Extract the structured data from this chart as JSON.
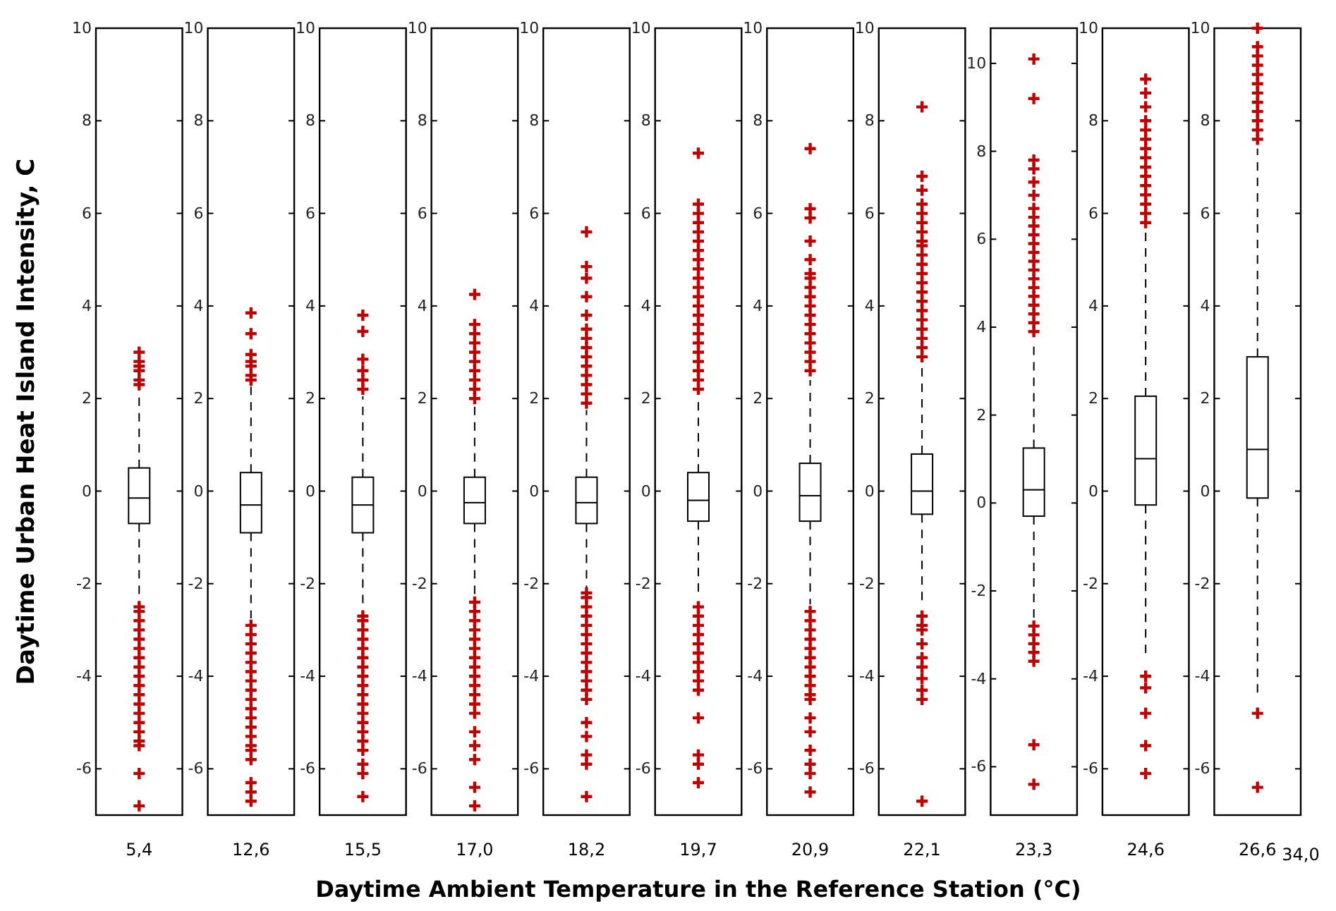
{
  "chart_data": [
    {
      "type": "box",
      "ylabel": "Daytime Urban Heat Island Intensity, C",
      "categories": [
        "5,4"
      ],
      "ylim": [
        -7,
        10
      ],
      "yticks": [
        -6,
        -4,
        -2,
        0,
        2,
        4,
        6,
        8,
        10
      ],
      "marker": "cross",
      "boxes": [
        {
          "low": -2.4,
          "q1": -0.7,
          "median": -0.15,
          "q3": 0.5,
          "high": 2.2,
          "outliers": [
            2.3,
            2.4,
            2.6,
            2.7,
            2.8,
            3.0,
            -2.5,
            -2.6,
            -2.8,
            -3.0,
            -3.2,
            -3.4,
            -3.6,
            -3.8,
            -4.0,
            -4.2,
            -4.4,
            -4.6,
            -4.8,
            -5.0,
            -5.2,
            -5.4,
            -5.5,
            -6.1,
            -6.8
          ]
        }
      ]
    },
    {
      "type": "box",
      "categories": [
        "12,6"
      ],
      "ylim": [
        -7,
        10
      ],
      "yticks": [
        -6,
        -4,
        -2,
        0,
        2,
        4,
        6,
        8,
        10
      ],
      "marker": "cross",
      "boxes": [
        {
          "low": -2.75,
          "q1": -0.9,
          "median": -0.3,
          "q3": 0.4,
          "high": 2.3,
          "outliers": [
            2.4,
            2.5,
            2.7,
            2.8,
            2.95,
            3.4,
            3.85,
            -2.9,
            -3.1,
            -3.3,
            -3.5,
            -3.7,
            -3.9,
            -4.1,
            -4.3,
            -4.5,
            -4.7,
            -4.9,
            -5.1,
            -5.3,
            -5.5,
            -5.6,
            -5.8,
            -6.3,
            -6.5,
            -6.7
          ]
        }
      ]
    },
    {
      "type": "box",
      "categories": [
        "15,5"
      ],
      "ylim": [
        -7,
        10
      ],
      "yticks": [
        -6,
        -4,
        -2,
        0,
        2,
        4,
        6,
        8,
        10
      ],
      "marker": "cross",
      "boxes": [
        {
          "low": -2.6,
          "q1": -0.9,
          "median": -0.3,
          "q3": 0.3,
          "high": 2.05,
          "outliers": [
            2.2,
            2.4,
            2.6,
            2.85,
            3.45,
            3.8,
            -2.7,
            -2.8,
            -3.0,
            -3.2,
            -3.4,
            -3.6,
            -3.8,
            -4.0,
            -4.2,
            -4.4,
            -4.6,
            -4.8,
            -5.0,
            -5.2,
            -5.4,
            -5.6,
            -5.9,
            -6.1,
            -6.6
          ]
        }
      ]
    },
    {
      "type": "box",
      "categories": [
        "17,0"
      ],
      "ylim": [
        -7,
        10
      ],
      "yticks": [
        -6,
        -4,
        -2,
        0,
        2,
        4,
        6,
        8,
        10
      ],
      "marker": "cross",
      "boxes": [
        {
          "low": -2.25,
          "q1": -0.7,
          "median": -0.25,
          "q3": 0.3,
          "high": 1.85,
          "outliers": [
            2.0,
            2.2,
            2.4,
            2.6,
            2.8,
            3.0,
            3.2,
            3.4,
            3.6,
            4.25,
            -2.4,
            -2.6,
            -2.8,
            -3.0,
            -3.2,
            -3.4,
            -3.6,
            -3.8,
            -4.0,
            -4.2,
            -4.4,
            -4.6,
            -4.8,
            -5.2,
            -5.5,
            -5.8,
            -6.4,
            -6.8
          ]
        }
      ]
    },
    {
      "type": "box",
      "categories": [
        "18,2"
      ],
      "ylim": [
        -7,
        10
      ],
      "yticks": [
        -6,
        -4,
        -2,
        0,
        2,
        4,
        6,
        8,
        10
      ],
      "marker": "cross",
      "boxes": [
        {
          "low": -2.1,
          "q1": -0.7,
          "median": -0.25,
          "q3": 0.3,
          "high": 1.75,
          "outliers": [
            1.9,
            2.1,
            2.3,
            2.5,
            2.7,
            2.9,
            3.1,
            3.3,
            3.5,
            3.8,
            4.2,
            4.6,
            4.85,
            5.6,
            -2.2,
            -2.3,
            -2.5,
            -2.7,
            -2.9,
            -3.1,
            -3.3,
            -3.5,
            -3.7,
            -3.9,
            -4.1,
            -4.3,
            -4.5,
            -5.0,
            -5.3,
            -5.7,
            -5.9,
            -6.6
          ]
        }
      ]
    },
    {
      "type": "box",
      "xlabel": "Daytime Ambient Temperature in the Reference Station (°C)",
      "categories": [
        "19,7"
      ],
      "ylim": [
        -7,
        10
      ],
      "yticks": [
        -6,
        -4,
        -2,
        0,
        2,
        4,
        6,
        8,
        10
      ],
      "marker": "cross",
      "boxes": [
        {
          "low": -2.3,
          "q1": -0.65,
          "median": -0.2,
          "q3": 0.4,
          "high": 2.0,
          "outliers": [
            2.2,
            2.4,
            2.6,
            2.8,
            3.0,
            3.2,
            3.4,
            3.6,
            3.8,
            4.0,
            4.2,
            4.4,
            4.6,
            4.8,
            5.0,
            5.2,
            5.4,
            5.6,
            5.8,
            6.0,
            6.2,
            7.3,
            -2.5,
            -2.7,
            -2.9,
            -3.1,
            -3.3,
            -3.5,
            -3.7,
            -3.9,
            -4.1,
            -4.3,
            -4.9,
            -5.7,
            -5.9,
            -6.3
          ]
        }
      ]
    },
    {
      "type": "box",
      "categories": [
        "20,9"
      ],
      "ylim": [
        -7,
        10
      ],
      "yticks": [
        -6,
        -4,
        -2,
        0,
        2,
        4,
        6,
        8,
        10
      ],
      "marker": "cross",
      "boxes": [
        {
          "low": -2.45,
          "q1": -0.65,
          "median": -0.1,
          "q3": 0.6,
          "high": 2.4,
          "outliers": [
            2.6,
            2.8,
            3.0,
            3.2,
            3.4,
            3.6,
            3.8,
            4.0,
            4.2,
            4.4,
            4.6,
            4.7,
            5.0,
            5.4,
            5.9,
            6.1,
            7.4,
            -2.6,
            -2.8,
            -3.0,
            -3.2,
            -3.4,
            -3.6,
            -3.8,
            -4.0,
            -4.2,
            -4.4,
            -4.5,
            -4.9,
            -5.2,
            -5.6,
            -5.9,
            -6.1,
            -6.5
          ]
        }
      ]
    },
    {
      "type": "box",
      "categories": [
        "22,1"
      ],
      "ylim": [
        -7,
        10
      ],
      "yticks": [
        -6,
        -4,
        -2,
        0,
        2,
        4,
        6,
        8,
        10
      ],
      "marker": "cross",
      "boxes": [
        {
          "low": -2.5,
          "q1": -0.5,
          "median": 0.0,
          "q3": 0.8,
          "high": 2.75,
          "outliers": [
            2.9,
            3.1,
            3.3,
            3.5,
            3.7,
            3.9,
            4.1,
            4.3,
            4.5,
            4.7,
            4.9,
            5.1,
            5.3,
            5.4,
            5.6,
            5.8,
            6.0,
            6.2,
            6.5,
            6.8,
            8.3,
            -2.7,
            -2.9,
            -3.0,
            -3.3,
            -3.6,
            -3.8,
            -4.05,
            -4.3,
            -4.5,
            -6.7
          ]
        }
      ]
    },
    {
      "type": "box",
      "categories": [
        "23,3"
      ],
      "ylim": [
        -7.1,
        10.8
      ],
      "yticks": [
        -6,
        -4,
        -2,
        0,
        2,
        4,
        6,
        8,
        10
      ],
      "marker": "cross",
      "boxes": [
        {
          "low": -2.7,
          "q1": -0.3,
          "median": 0.3,
          "q3": 1.25,
          "high": 3.7,
          "outliers": [
            3.9,
            4.1,
            4.3,
            4.5,
            4.7,
            4.9,
            5.1,
            5.3,
            5.5,
            5.7,
            5.9,
            6.1,
            6.3,
            6.5,
            6.7,
            7.0,
            7.3,
            7.6,
            7.8,
            9.2,
            10.1,
            -2.8,
            -3.0,
            -3.2,
            -3.4,
            -3.6,
            -5.5,
            -6.4
          ]
        }
      ]
    },
    {
      "type": "box",
      "categories": [
        "24,6"
      ],
      "ylim": [
        -7,
        10
      ],
      "yticks": [
        -6,
        -4,
        -2,
        0,
        2,
        4,
        6,
        8,
        10
      ],
      "marker": "cross",
      "boxes": [
        {
          "low": -3.5,
          "q1": -0.3,
          "median": 0.7,
          "q3": 2.05,
          "high": 5.65,
          "outliers": [
            5.8,
            6.0,
            6.2,
            6.4,
            6.6,
            6.8,
            7.0,
            7.2,
            7.4,
            7.6,
            7.8,
            8.0,
            8.3,
            8.6,
            8.9,
            -4.0,
            -4.25,
            -4.8,
            -5.5,
            -6.1
          ]
        }
      ]
    },
    {
      "type": "box",
      "categories": [
        "26,6"
      ],
      "annotations": [
        "34,0"
      ],
      "ylim": [
        -7,
        10
      ],
      "yticks": [
        -6,
        -4,
        -2,
        0,
        2,
        4,
        6,
        8,
        10
      ],
      "marker": "cross",
      "boxes": [
        {
          "low": -4.5,
          "q1": -0.15,
          "median": 0.9,
          "q3": 2.9,
          "high": 7.4,
          "outliers": [
            7.6,
            7.8,
            8.0,
            8.2,
            8.4,
            8.6,
            8.8,
            9.0,
            9.2,
            9.4,
            9.6,
            10.0,
            -4.8,
            -6.4
          ]
        }
      ]
    }
  ]
}
